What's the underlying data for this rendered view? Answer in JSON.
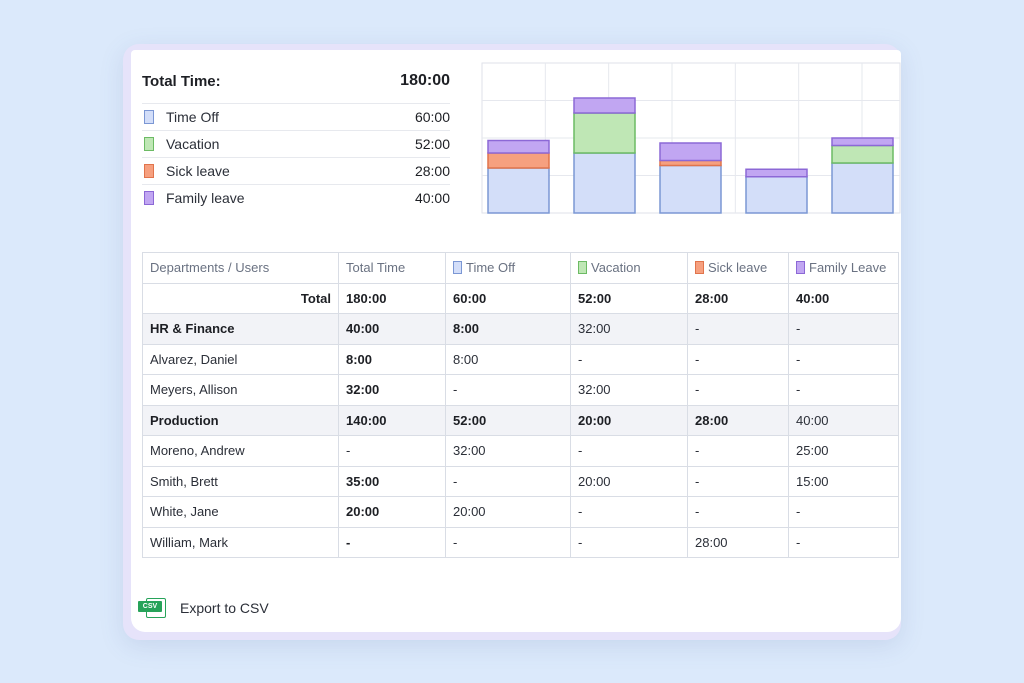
{
  "colors": {
    "time_off": {
      "fill": "#d3def9",
      "stroke": "#7b97d4"
    },
    "vacation": {
      "fill": "#bfe7b5",
      "stroke": "#6cbb64"
    },
    "sick_leave": {
      "fill": "#f6a07f",
      "stroke": "#e1744c"
    },
    "family_leave": {
      "fill": "#c1a6f2",
      "stroke": "#8c68d6"
    }
  },
  "summary": {
    "total_label": "Total Time:",
    "total_value": "180:00",
    "items": [
      {
        "label": "Time Off",
        "value": "60:00",
        "key": "time_off"
      },
      {
        "label": "Vacation",
        "value": "52:00",
        "key": "vacation"
      },
      {
        "label": "Sick leave",
        "value": "28:00",
        "key": "sick_leave"
      },
      {
        "label": "Family leave",
        "value": "40:00",
        "key": "family_leave"
      }
    ]
  },
  "chart_data": {
    "type": "bar",
    "stacked": true,
    "categories": [
      "",
      "",
      "",
      "",
      ""
    ],
    "ylim": [
      0,
      60
    ],
    "grid": true,
    "series": [
      {
        "key": "time_off",
        "values": [
          18,
          24,
          19,
          14.5,
          20
        ]
      },
      {
        "key": "vacation",
        "values": [
          0,
          16,
          0,
          0,
          7
        ]
      },
      {
        "key": "sick_leave",
        "values": [
          6,
          0,
          2,
          0,
          0
        ]
      },
      {
        "key": "family_leave",
        "values": [
          5,
          6,
          7,
          3,
          3
        ]
      }
    ]
  },
  "table": {
    "headers": [
      {
        "label": "Departments / Users",
        "swatch": null
      },
      {
        "label": "Total Time",
        "swatch": null
      },
      {
        "label": "Time Off",
        "swatch": "time_off"
      },
      {
        "label": "Vacation",
        "swatch": "vacation"
      },
      {
        "label": "Sick leave",
        "swatch": "sick_leave"
      },
      {
        "label": "Family Leave",
        "swatch": "family_leave"
      }
    ],
    "rows": [
      {
        "type": "total",
        "cells": [
          "Total",
          "180:00",
          "60:00",
          "52:00",
          "28:00",
          "40:00"
        ]
      },
      {
        "type": "dept",
        "cells": [
          "HR & Finance",
          "40:00",
          "8:00",
          "32:00",
          "-",
          "-"
        ]
      },
      {
        "type": "user",
        "cells": [
          "Alvarez, Daniel",
          "8:00",
          "8:00",
          "-",
          "-",
          "-"
        ]
      },
      {
        "type": "user",
        "cells": [
          "Meyers, Allison",
          "32:00",
          "-",
          "32:00",
          "-",
          "-"
        ]
      },
      {
        "type": "dept",
        "cells": [
          "Production",
          "140:00",
          "52:00",
          "20:00",
          "28:00",
          "40:00"
        ]
      },
      {
        "type": "user",
        "cells": [
          "Moreno, Andrew",
          "-",
          "32:00",
          "-",
          "-",
          "25:00"
        ]
      },
      {
        "type": "user",
        "cells": [
          "Smith, Brett",
          "35:00",
          "-",
          "20:00",
          "-",
          "15:00"
        ]
      },
      {
        "type": "user",
        "cells": [
          "White, Jane",
          "20:00",
          "20:00",
          "-",
          "-",
          "-"
        ]
      },
      {
        "type": "user",
        "cells": [
          "William, Mark",
          "-",
          "-",
          "-",
          "28:00",
          "-"
        ]
      }
    ]
  },
  "export": {
    "icon": "csv-file-icon",
    "icon_text": "CSV",
    "label": "Export to CSV"
  }
}
